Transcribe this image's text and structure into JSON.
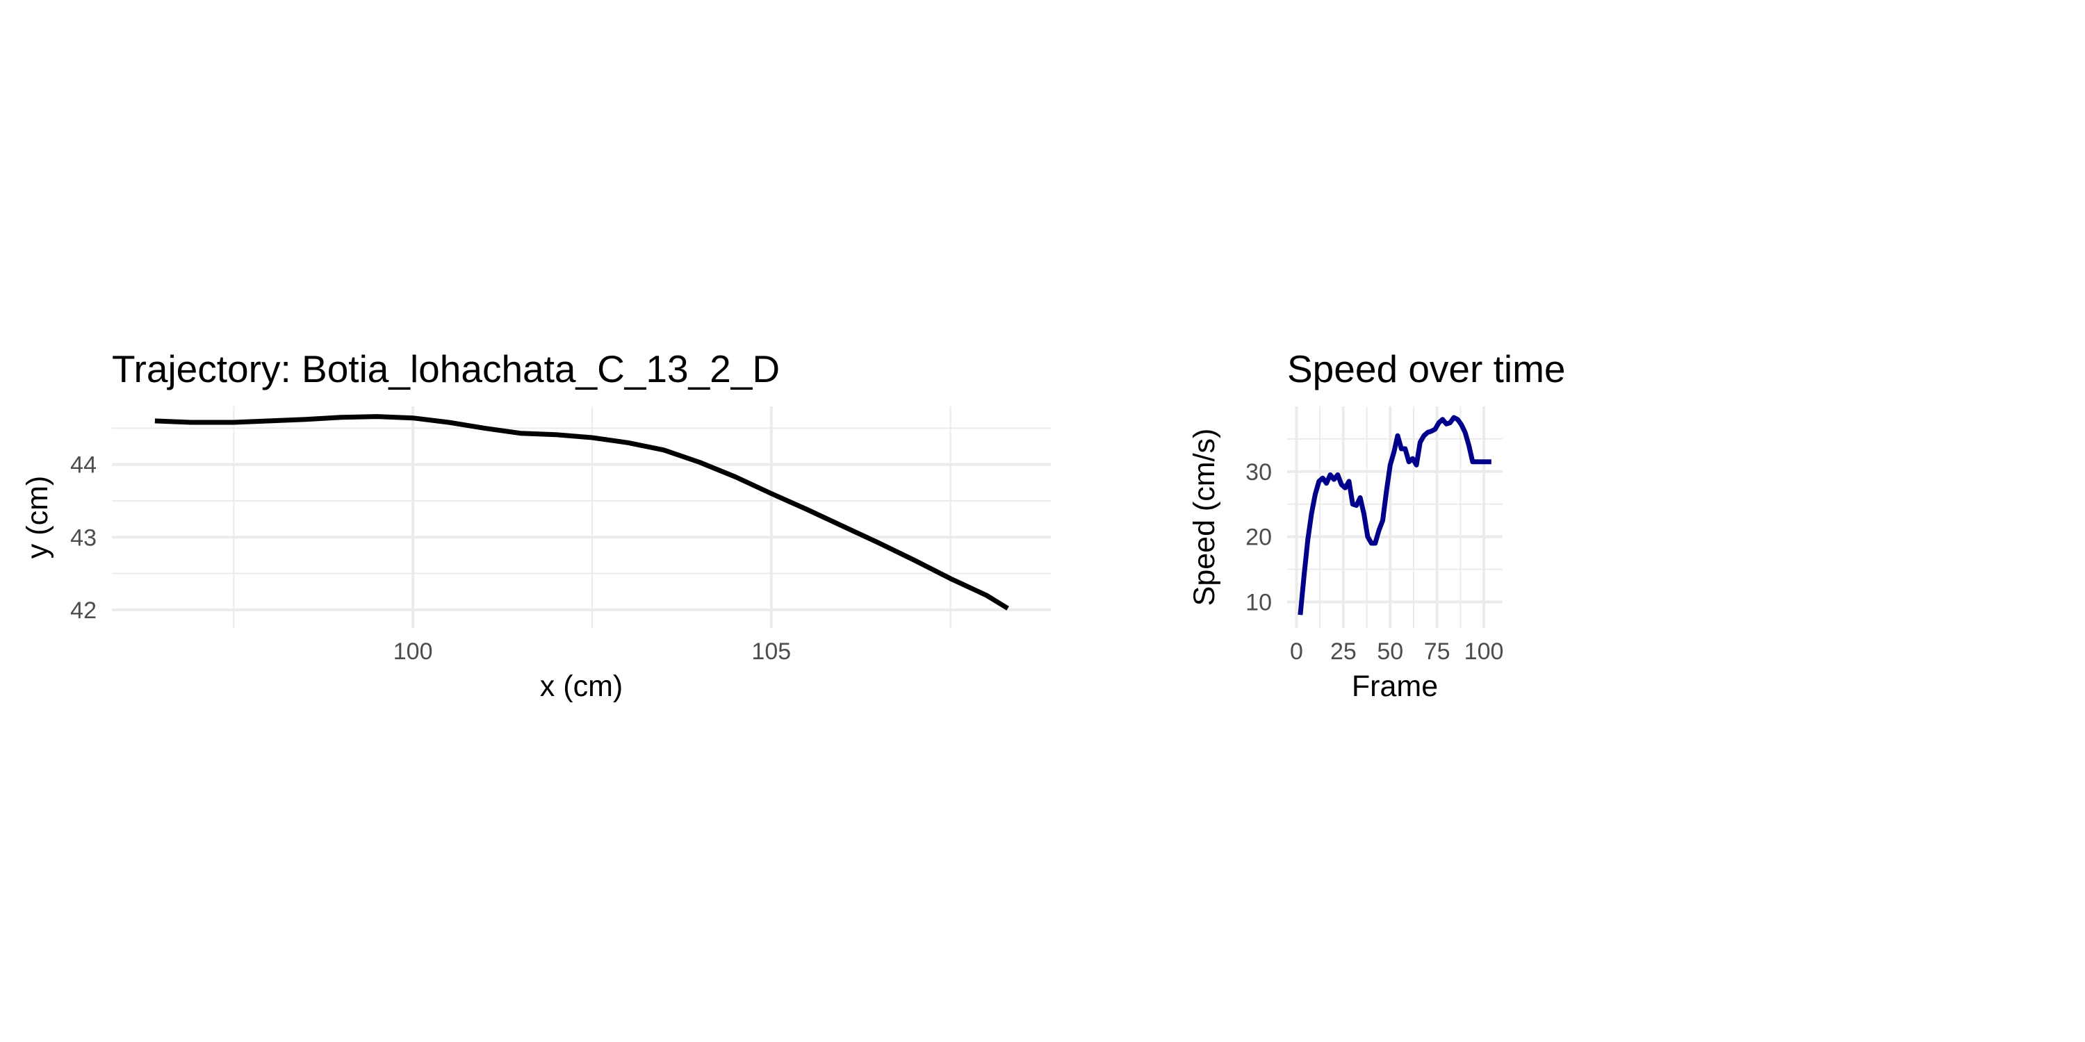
{
  "chart_data": [
    {
      "type": "line",
      "title": "Trajectory: Botia_lohachata_C_13_2_D",
      "xlabel": "x (cm)",
      "ylabel": "y (cm)",
      "xlim": [
        95.8,
        108.9
      ],
      "ylim": [
        41.75,
        44.8
      ],
      "x_major_ticks": [
        100,
        105
      ],
      "x_minor_ticks": [
        97.5,
        102.5,
        107.5
      ],
      "y_major_ticks": [
        42,
        43,
        44
      ],
      "y_minor_ticks": [
        42.5,
        43.5,
        44.5
      ],
      "grid": true,
      "legend": "none",
      "series": [
        {
          "name": "trajectory",
          "color": "#000000",
          "x": [
            96.4,
            96.9,
            97.5,
            98.0,
            98.5,
            99.0,
            99.5,
            100.0,
            100.5,
            101.0,
            101.5,
            102.0,
            102.5,
            103.0,
            103.5,
            104.0,
            104.5,
            105.0,
            105.5,
            106.0,
            106.5,
            107.0,
            107.5,
            108.0,
            108.3
          ],
          "y": [
            44.6,
            44.58,
            44.58,
            44.6,
            44.62,
            44.65,
            44.66,
            44.64,
            44.58,
            44.5,
            44.43,
            44.41,
            44.37,
            44.3,
            44.2,
            44.03,
            43.83,
            43.6,
            43.38,
            43.15,
            42.92,
            42.68,
            42.43,
            42.2,
            42.02
          ]
        }
      ]
    },
    {
      "type": "line",
      "title": "Speed over time",
      "xlabel": "Frame",
      "ylabel": "Speed (cm/s)",
      "xlim": [
        -5,
        110
      ],
      "ylim": [
        6,
        40
      ],
      "x_major_ticks": [
        0,
        25,
        50,
        75,
        100
      ],
      "x_minor_ticks": [
        12.5,
        37.5,
        62.5,
        87.5
      ],
      "y_major_ticks": [
        10,
        20,
        30
      ],
      "y_minor_ticks": [
        15,
        25,
        35
      ],
      "grid": true,
      "legend": "none",
      "series": [
        {
          "name": "speed",
          "color": "#00008b",
          "x": [
            2,
            4,
            6,
            8,
            10,
            12,
            14,
            16,
            18,
            20,
            22,
            24,
            26,
            28,
            30,
            32,
            34,
            36,
            38,
            40,
            42,
            44,
            46,
            48,
            50,
            52,
            54,
            56,
            58,
            60,
            62,
            64,
            66,
            68,
            70,
            72,
            74,
            76,
            78,
            80,
            82,
            84,
            86,
            88,
            90,
            92,
            94,
            96,
            98,
            100,
            102,
            104
          ],
          "y": [
            8,
            14,
            19.5,
            23.5,
            26.5,
            28.5,
            29,
            28.2,
            29.5,
            28.8,
            29.5,
            28,
            27.5,
            28.5,
            25,
            24.8,
            26,
            23.5,
            20,
            19,
            19,
            21,
            22.5,
            27,
            31,
            33,
            35.5,
            33.5,
            33.5,
            31.5,
            32,
            31,
            34.5,
            35.5,
            36,
            36.2,
            36.5,
            37.5,
            38,
            37.3,
            37.5,
            38.3,
            38,
            37.2,
            36,
            34,
            31.5,
            31.5,
            31.5,
            31.5,
            31.5,
            31.5
          ]
        }
      ]
    }
  ]
}
